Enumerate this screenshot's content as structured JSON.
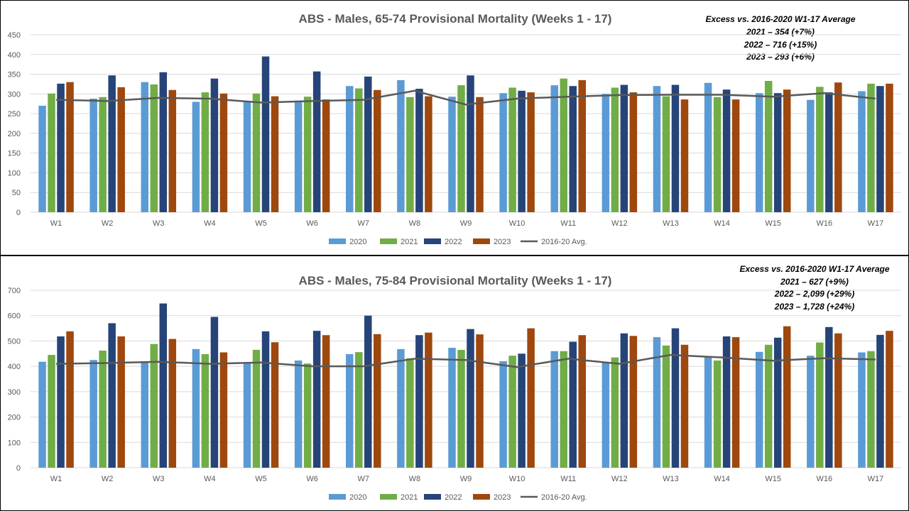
{
  "colors": {
    "2020": "#5b9bd5",
    "2021": "#70ad47",
    "2022": "#264478",
    "2023": "#9e480e",
    "avg": "#595959",
    "grid": "#d9d9d9"
  },
  "legend": [
    "2020",
    "2021",
    "2022",
    "2023",
    "2016-20 Avg."
  ],
  "chart_data": [
    {
      "type": "bar",
      "title": "ABS - Males, 65-74 Provisional Mortality (Weeks 1 - 17)",
      "categories": [
        "W1",
        "W2",
        "W3",
        "W4",
        "W5",
        "W6",
        "W7",
        "W8",
        "W9",
        "W10",
        "W11",
        "W12",
        "W13",
        "W14",
        "W15",
        "W16",
        "W17"
      ],
      "ylim": [
        0,
        450
      ],
      "yticks": [
        "0",
        "50",
        "100",
        "150",
        "200",
        "250",
        "300",
        "350",
        "400",
        "450"
      ],
      "grid": true,
      "legend_position": "bottom",
      "series": [
        {
          "name": "2020",
          "values": [
            270,
            288,
            330,
            280,
            280,
            283,
            320,
            335,
            293,
            302,
            322,
            300,
            320,
            328,
            302,
            285,
            307
          ]
        },
        {
          "name": "2021",
          "values": [
            301,
            292,
            324,
            304,
            301,
            293,
            314,
            292,
            322,
            316,
            339,
            316,
            294,
            292,
            333,
            318,
            326
          ]
        },
        {
          "name": "2022",
          "values": [
            326,
            347,
            355,
            339,
            395,
            357,
            344,
            313,
            347,
            308,
            320,
            323,
            323,
            311,
            302,
            304,
            320
          ]
        },
        {
          "name": "2023",
          "values": [
            330,
            317,
            310,
            301,
            294,
            286,
            310,
            294,
            292,
            304,
            335,
            304,
            286,
            286,
            311,
            329,
            326
          ]
        }
      ],
      "line_series": {
        "name": "2016-20 Avg.",
        "values": [
          285,
          282,
          290,
          288,
          278,
          282,
          285,
          308,
          273,
          288,
          293,
          297,
          298,
          298,
          293,
          302,
          288
        ]
      },
      "annotation": [
        "Excess vs. 2016-2020  W1-17 Average",
        "2021 –  354  (+7%)",
        "2022 –  716  (+15%)",
        "2023 –  293  (+6%)"
      ]
    },
    {
      "type": "bar",
      "title": "ABS - Males, 75-84 Provisional Mortality (Weeks 1 - 17)",
      "categories": [
        "W1",
        "W2",
        "W3",
        "W4",
        "W5",
        "W6",
        "W7",
        "W8",
        "W9",
        "W10",
        "W11",
        "W12",
        "W13",
        "W14",
        "W15",
        "W16",
        "W17"
      ],
      "ylim": [
        0,
        700
      ],
      "yticks": [
        "0",
        "100",
        "200",
        "300",
        "400",
        "500",
        "600",
        "700"
      ],
      "grid": true,
      "legend_position": "bottom",
      "series": [
        {
          "name": "2020",
          "values": [
            418,
            425,
            420,
            468,
            415,
            423,
            448,
            468,
            473,
            420,
            460,
            415,
            515,
            440,
            457,
            442,
            455
          ]
        },
        {
          "name": "2021",
          "values": [
            445,
            462,
            488,
            448,
            465,
            411,
            456,
            432,
            465,
            442,
            460,
            435,
            482,
            423,
            485,
            494,
            460
          ]
        },
        {
          "name": "2022",
          "values": [
            518,
            570,
            648,
            595,
            538,
            540,
            600,
            523,
            547,
            450,
            497,
            530,
            550,
            518,
            513,
            555,
            524
          ]
        },
        {
          "name": "2023",
          "values": [
            538,
            518,
            508,
            455,
            495,
            523,
            527,
            533,
            526,
            550,
            523,
            520,
            485,
            515,
            558,
            530,
            540
          ]
        }
      ],
      "line_series": {
        "name": "2016-20 Avg.",
        "values": [
          410,
          413,
          418,
          410,
          415,
          400,
          400,
          430,
          425,
          397,
          430,
          410,
          445,
          435,
          422,
          432,
          427
        ]
      },
      "annotation": [
        "Excess vs. 2016-2020  W1-17 Average",
        "2021 –  627  (+9%)",
        "2022 –  2,099  (+29%)",
        "2023 –  1,728  (+24%)"
      ]
    }
  ]
}
